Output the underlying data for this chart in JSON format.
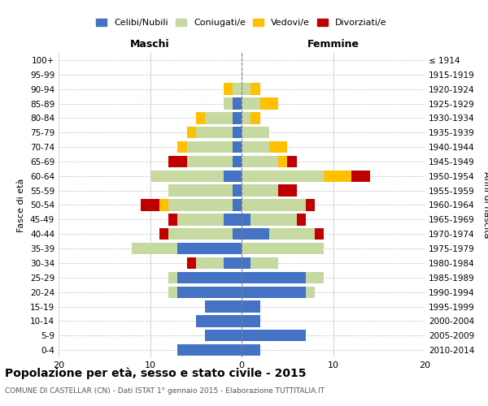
{
  "age_groups": [
    "0-4",
    "5-9",
    "10-14",
    "15-19",
    "20-24",
    "25-29",
    "30-34",
    "35-39",
    "40-44",
    "45-49",
    "50-54",
    "55-59",
    "60-64",
    "65-69",
    "70-74",
    "75-79",
    "80-84",
    "85-89",
    "90-94",
    "95-99",
    "100+"
  ],
  "birth_years": [
    "2010-2014",
    "2005-2009",
    "2000-2004",
    "1995-1999",
    "1990-1994",
    "1985-1989",
    "1980-1984",
    "1975-1979",
    "1970-1974",
    "1965-1969",
    "1960-1964",
    "1955-1959",
    "1950-1954",
    "1945-1949",
    "1940-1944",
    "1935-1939",
    "1930-1934",
    "1925-1929",
    "1920-1924",
    "1915-1919",
    "≤ 1914"
  ],
  "colors": {
    "celibi": "#4472c4",
    "coniugati": "#c5d9a0",
    "vedovi": "#ffc000",
    "divorziati": "#c00000"
  },
  "maschi": {
    "celibi": [
      7,
      4,
      5,
      4,
      7,
      7,
      2,
      7,
      1,
      2,
      1,
      1,
      2,
      1,
      1,
      1,
      1,
      1,
      0,
      0,
      0
    ],
    "coniugati": [
      0,
      0,
      0,
      0,
      1,
      1,
      3,
      5,
      7,
      5,
      7,
      7,
      8,
      5,
      5,
      4,
      3,
      1,
      1,
      0,
      0
    ],
    "vedovi": [
      0,
      0,
      0,
      0,
      0,
      0,
      0,
      0,
      0,
      0,
      1,
      0,
      0,
      0,
      1,
      1,
      1,
      0,
      1,
      0,
      0
    ],
    "divorziati": [
      0,
      0,
      0,
      0,
      0,
      0,
      1,
      0,
      1,
      1,
      2,
      0,
      0,
      2,
      0,
      0,
      0,
      0,
      0,
      0,
      0
    ]
  },
  "femmine": {
    "celibi": [
      2,
      7,
      2,
      2,
      7,
      7,
      1,
      0,
      3,
      1,
      0,
      0,
      0,
      0,
      0,
      0,
      0,
      0,
      0,
      0,
      0
    ],
    "coniugati": [
      0,
      0,
      0,
      0,
      1,
      2,
      3,
      9,
      5,
      5,
      7,
      4,
      9,
      4,
      3,
      3,
      1,
      2,
      1,
      0,
      0
    ],
    "vedovi": [
      0,
      0,
      0,
      0,
      0,
      0,
      0,
      0,
      0,
      0,
      0,
      0,
      3,
      1,
      2,
      0,
      1,
      2,
      1,
      0,
      0
    ],
    "divorziati": [
      0,
      0,
      0,
      0,
      0,
      0,
      0,
      0,
      1,
      1,
      1,
      2,
      2,
      1,
      0,
      0,
      0,
      0,
      0,
      0,
      0
    ]
  },
  "xlim": 20,
  "title": "Popolazione per età, sesso e stato civile - 2015",
  "subtitle": "COMUNE DI CASTELLAR (CN) - Dati ISTAT 1° gennaio 2015 - Elaborazione TUTTITALIA.IT",
  "ylabel_left": "Fasce di età",
  "ylabel_right": "Anni di nascita",
  "xlabel_maschi": "Maschi",
  "xlabel_femmine": "Femmine",
  "legend_labels": [
    "Celibi/Nubili",
    "Coniugati/e",
    "Vedovi/e",
    "Divorziati/e"
  ],
  "bg_color": "#ffffff",
  "grid_color": "#cccccc"
}
